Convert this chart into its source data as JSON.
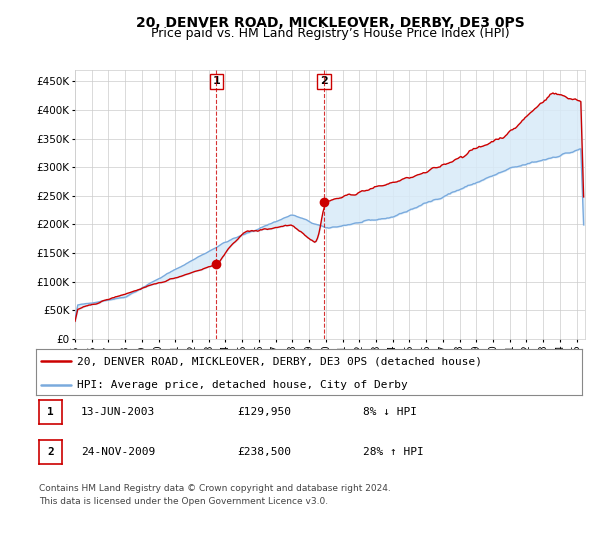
{
  "title": "20, DENVER ROAD, MICKLEOVER, DERBY, DE3 0PS",
  "subtitle": "Price paid vs. HM Land Registry’s House Price Index (HPI)",
  "ylabel_ticks": [
    "£0",
    "£50K",
    "£100K",
    "£150K",
    "£200K",
    "£250K",
    "£300K",
    "£350K",
    "£400K",
    "£450K"
  ],
  "ylim": [
    0,
    470000
  ],
  "ytick_values": [
    0,
    50000,
    100000,
    150000,
    200000,
    250000,
    300000,
    350000,
    400000,
    450000
  ],
  "xlim_start": 1995.0,
  "xlim_end": 2025.5,
  "sale1": {
    "date_num": 2003.45,
    "price": 129950,
    "label": "1"
  },
  "sale2": {
    "date_num": 2009.9,
    "price": 238500,
    "label": "2"
  },
  "legend_line1": "20, DENVER ROAD, MICKLEOVER, DERBY, DE3 0PS (detached house)",
  "legend_line2": "HPI: Average price, detached house, City of Derby",
  "table_rows": [
    {
      "num": "1",
      "date": "13-JUN-2003",
      "price": "£129,950",
      "pct": "8% ↓ HPI"
    },
    {
      "num": "2",
      "date": "24-NOV-2009",
      "price": "£238,500",
      "pct": "28% ↑ HPI"
    }
  ],
  "footnote": "Contains HM Land Registry data © Crown copyright and database right 2024.\nThis data is licensed under the Open Government Licence v3.0.",
  "line_color_red": "#cc0000",
  "line_color_blue": "#7aaadd",
  "shading_color": "#d8eaf8",
  "sale_dot_color": "#cc0000",
  "vline_color": "#cc0000",
  "grid_color": "#cccccc",
  "background_color": "#ffffff",
  "title_fontsize": 10,
  "subtitle_fontsize": 9,
  "tick_fontsize": 7.5,
  "legend_fontsize": 8,
  "table_fontsize": 8,
  "footnote_fontsize": 6.5
}
